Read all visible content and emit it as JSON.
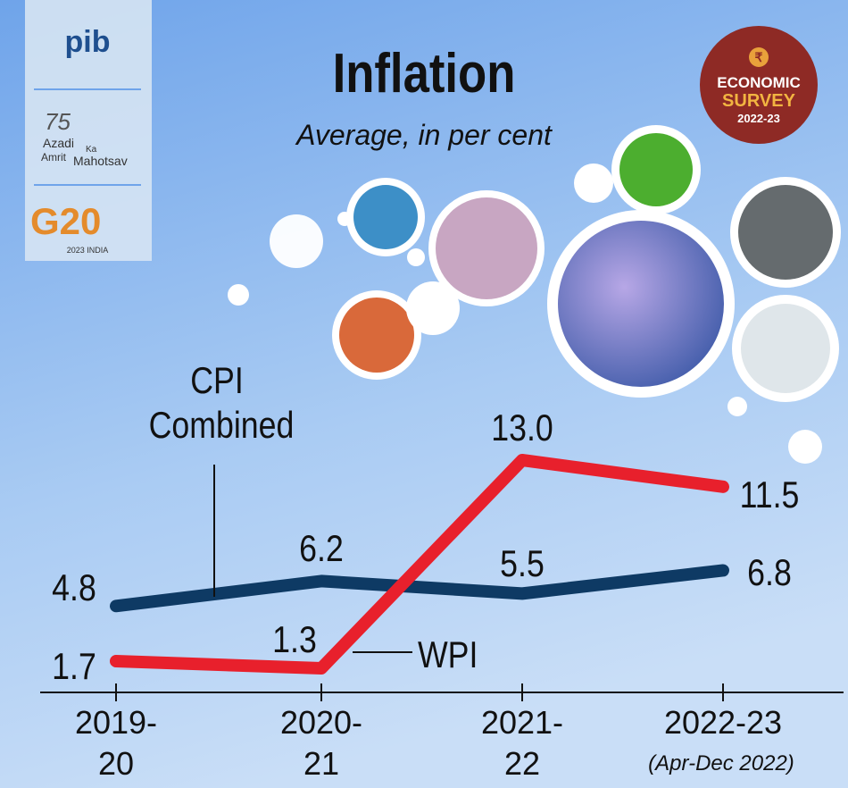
{
  "chart_data": {
    "type": "line",
    "title": "Inflation",
    "subtitle": "Average, in per cent",
    "categories": [
      "2019-20",
      "2020-21",
      "2021-22",
      "2022-23"
    ],
    "annotation": "(Apr-Dec 2022)",
    "series": [
      {
        "name": "CPI Combined",
        "color": "#0e3a64",
        "values": [
          4.8,
          6.2,
          5.5,
          6.8
        ]
      },
      {
        "name": "WPI",
        "color": "#e8202c",
        "values": [
          1.7,
          1.3,
          13,
          11.5
        ],
        "value_labels": [
          "1.7",
          "1.3",
          "13.0",
          "11.5"
        ]
      }
    ]
  },
  "logos": {
    "pib": "pib",
    "azadi": [
      "75",
      "Azadi",
      "Ka",
      "Amrit",
      "Mahotsav"
    ],
    "g20": "G20",
    "g20_sub": "2023 INDIA",
    "badge": {
      "symbol": "₹",
      "line1": "ECONOMIC",
      "line2": "SURVEY",
      "line3": "2022-23"
    }
  }
}
